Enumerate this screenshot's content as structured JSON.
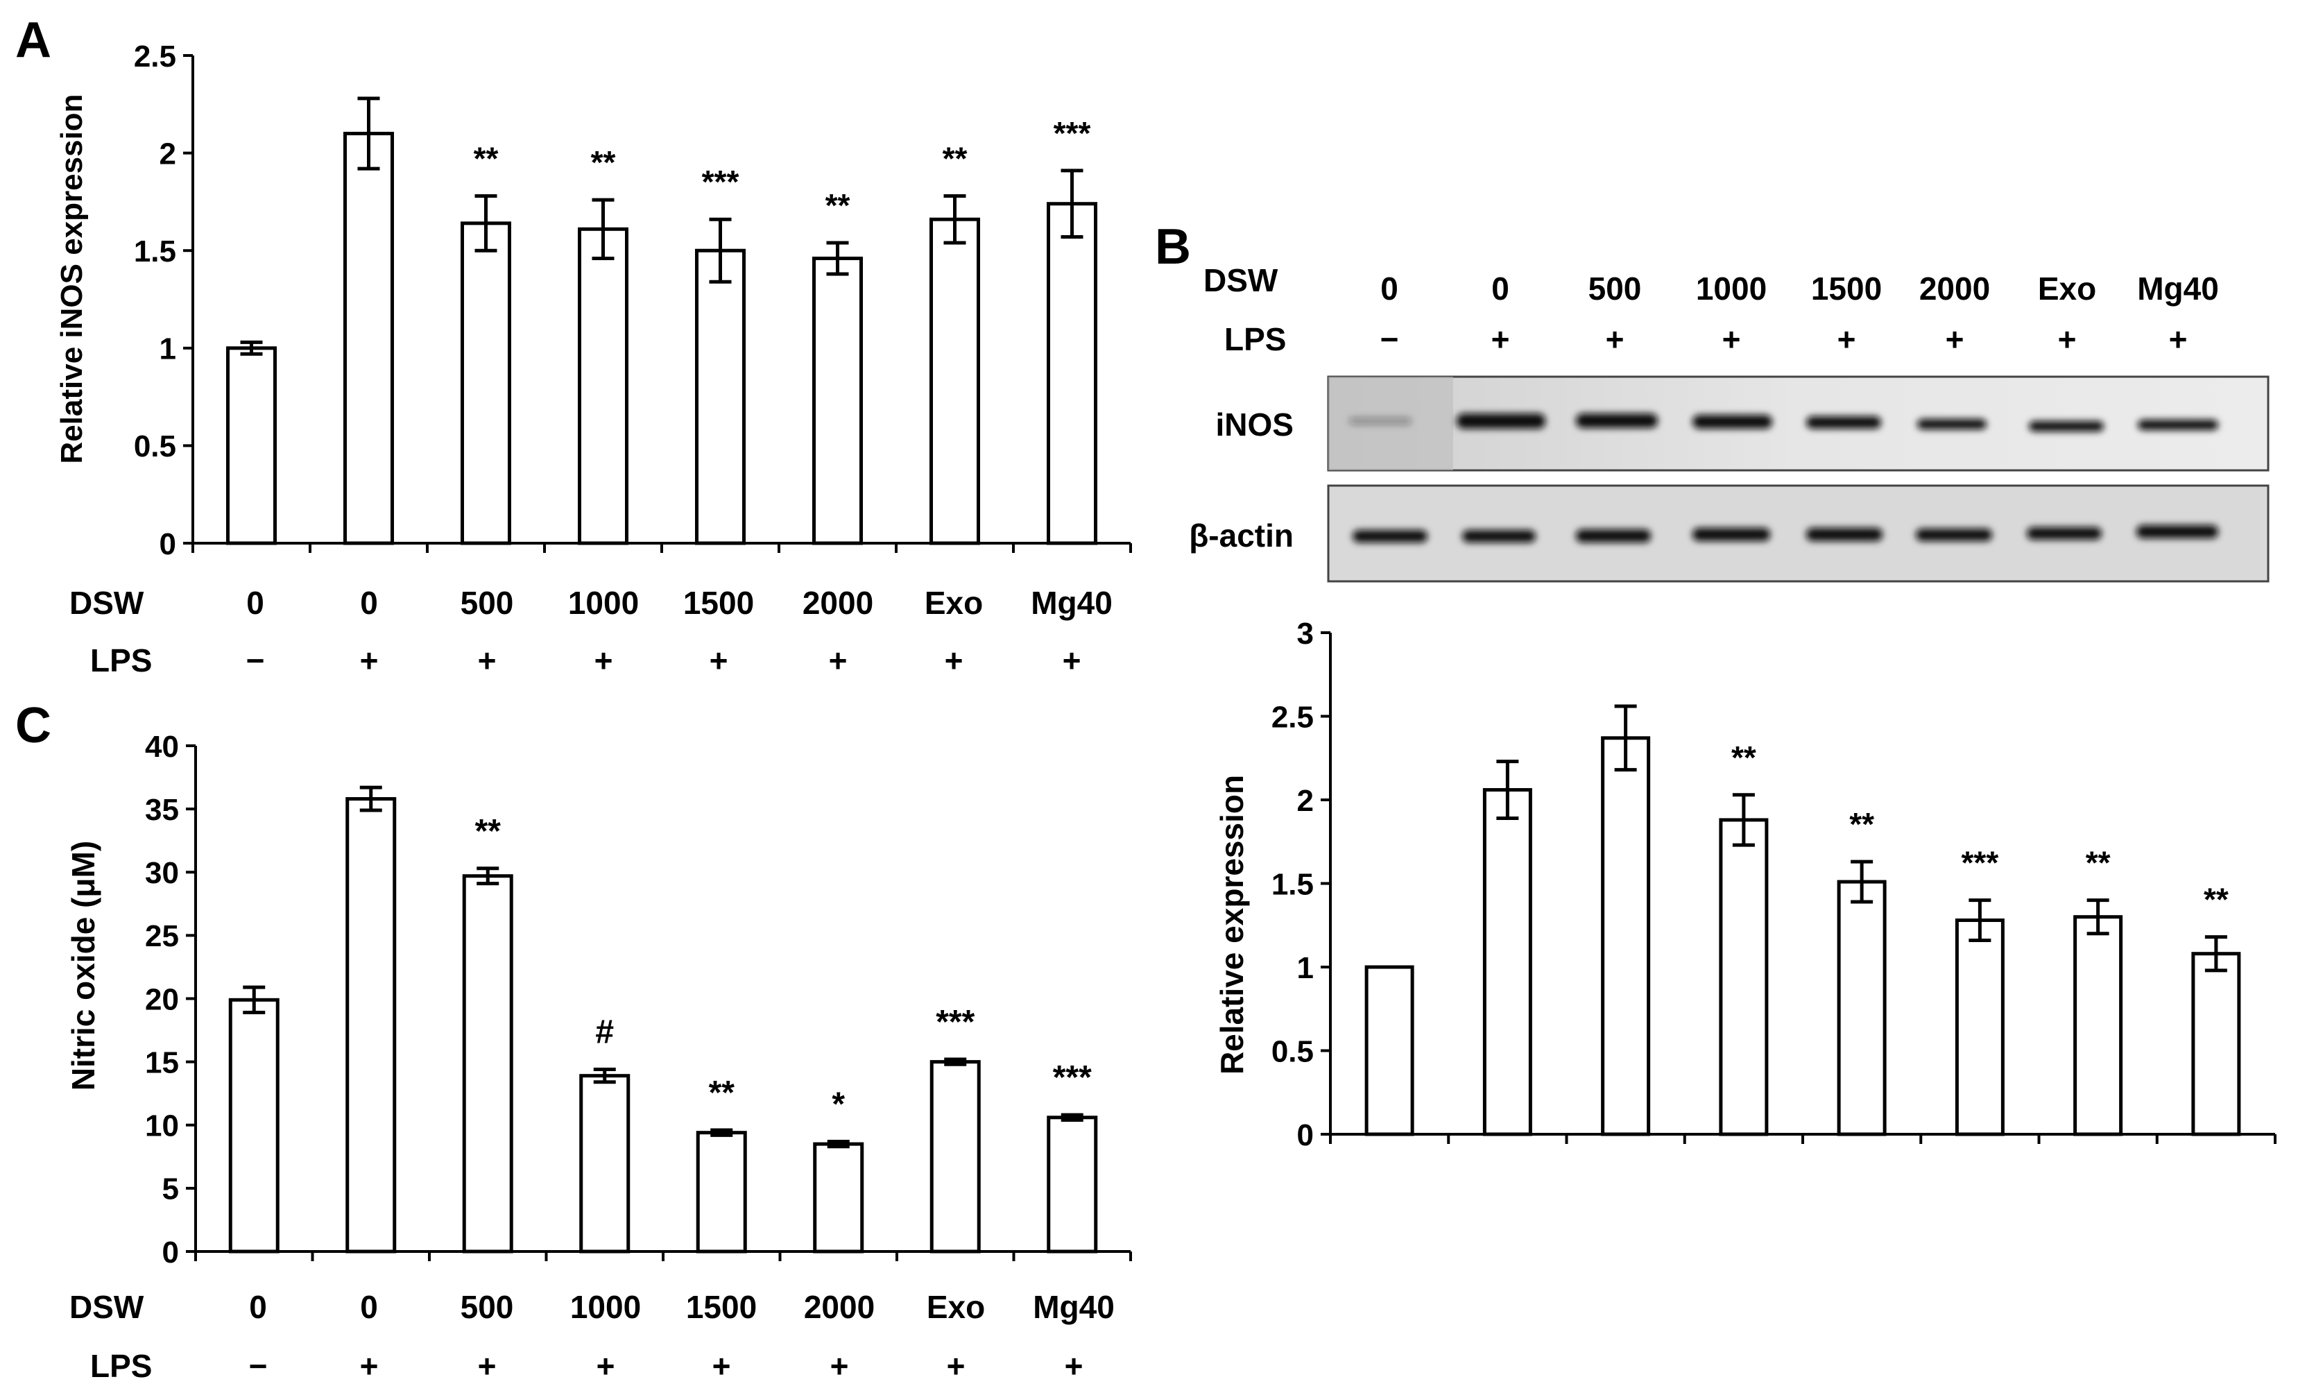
{
  "colors": {
    "axis": "#000000",
    "bar_fill": "#ffffff",
    "bar_stroke": "#000000",
    "blot_bg": "#e4e4e4",
    "band": "#1a1a1a"
  },
  "row_labels": {
    "dsw": "DSW",
    "lps": "LPS"
  },
  "panels": {
    "A": {
      "letter": "A",
      "dsw": [
        "0",
        "0",
        "500",
        "1000",
        "1500",
        "2000",
        "Exo",
        "Mg40"
      ],
      "lps": [
        "−",
        "+",
        "+",
        "+",
        "+",
        "+",
        "+",
        "+"
      ]
    },
    "B": {
      "letter": "B",
      "dsw": [
        "0",
        "0",
        "500",
        "1000",
        "1500",
        "2000",
        "Exo",
        "Mg40"
      ],
      "lps": [
        "−",
        "+",
        "+",
        "+",
        "+",
        "+",
        "+",
        "+"
      ],
      "blot_labels": [
        "iNOS",
        "β-actin"
      ]
    },
    "C": {
      "letter": "C",
      "dsw": [
        "0",
        "0",
        "500",
        "1000",
        "1500",
        "2000",
        "Exo",
        "Mg40"
      ],
      "lps": [
        "−",
        "+",
        "+",
        "+",
        "+",
        "+",
        "+",
        "+"
      ]
    }
  },
  "chart_data": [
    {
      "id": "A",
      "type": "bar",
      "ylabel": "Relative iNOS expression",
      "ylim": [
        0,
        2.5
      ],
      "yticks": [
        "0",
        "0.5",
        "1",
        "1.5",
        "2",
        "2.5"
      ],
      "values": [
        1.0,
        2.1,
        1.64,
        1.61,
        1.5,
        1.46,
        1.66,
        1.74
      ],
      "errors": [
        0.03,
        0.18,
        0.14,
        0.15,
        0.16,
        0.08,
        0.12,
        0.17
      ],
      "annotations": [
        "",
        "",
        "**",
        "**",
        "***",
        "**",
        "**",
        "***"
      ],
      "grid": false
    },
    {
      "id": "B",
      "type": "bar",
      "ylabel": "Relative expression",
      "ylim": [
        0,
        3
      ],
      "yticks": [
        "0",
        "0.5",
        "1",
        "1.5",
        "2",
        "2.5",
        "3"
      ],
      "values": [
        1.0,
        2.06,
        2.37,
        1.88,
        1.51,
        1.28,
        1.3,
        1.08
      ],
      "errors": [
        0.0,
        0.17,
        0.19,
        0.15,
        0.12,
        0.12,
        0.1,
        0.1
      ],
      "annotations": [
        "",
        "",
        "",
        "**",
        "**",
        "***",
        "**",
        "**"
      ],
      "grid": false
    },
    {
      "id": "C",
      "type": "bar",
      "ylabel": "Nitric oxide (μM)",
      "ylim": [
        0,
        40
      ],
      "yticks": [
        "0",
        "5",
        "10",
        "15",
        "20",
        "25",
        "30",
        "35",
        "40"
      ],
      "values": [
        19.9,
        35.8,
        29.7,
        13.9,
        9.4,
        8.5,
        15.0,
        10.6
      ],
      "errors": [
        1.0,
        0.9,
        0.6,
        0.5,
        0.2,
        0.2,
        0.2,
        0.2
      ],
      "annotations": [
        "",
        "",
        "**",
        "#",
        "**",
        "*",
        "***",
        "***"
      ],
      "grid": false
    }
  ]
}
